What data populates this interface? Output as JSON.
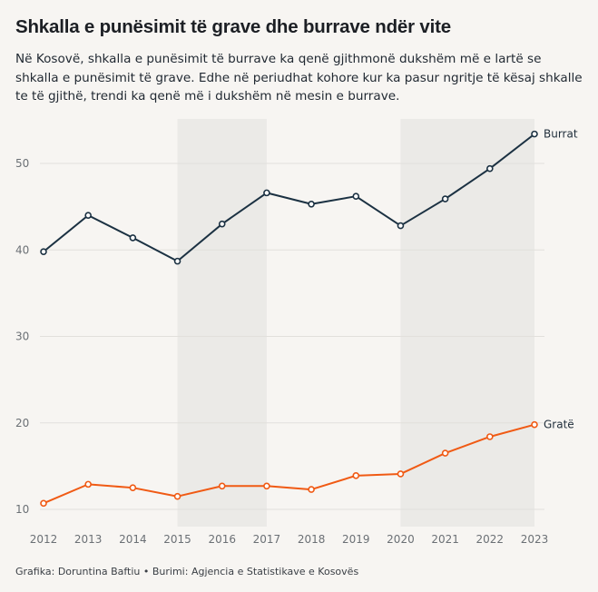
{
  "header": {
    "title": "Shkalla e punësimit të grave dhe burrave ndër vite",
    "subtitle": "Në Kosovë, shkalla e punësimit të burrave ka qenë gjithmonë dukshëm më e lartë se shkalla e punësimit të grave. Edhe në periudhat kohore kur ka pasur ngritje të kësaj shkalle te të gjithë, trendi ka qenë më i dukshëm në mesin e burrave."
  },
  "footer": {
    "credit": "Grafika: Doruntina Baftiu • Burimi: Agjencia e Statistikave e Kosovës"
  },
  "chart_data": {
    "type": "line",
    "x": [
      2012,
      2013,
      2014,
      2015,
      2016,
      2017,
      2018,
      2019,
      2020,
      2021,
      2022,
      2023
    ],
    "series": [
      {
        "name": "Burrat",
        "color": "#1b3142",
        "values": [
          39.8,
          44.0,
          41.4,
          38.7,
          43.0,
          46.6,
          45.3,
          46.2,
          42.8,
          45.9,
          49.4,
          53.4
        ]
      },
      {
        "name": "Gratë",
        "color": "#f05a14",
        "values": [
          10.7,
          12.9,
          12.5,
          11.5,
          12.7,
          12.7,
          12.3,
          13.9,
          14.1,
          16.5,
          18.4,
          19.8
        ]
      }
    ],
    "yticks": [
      10,
      20,
      30,
      40,
      50
    ],
    "ylim": [
      8.2,
      55.5
    ],
    "shaded_ranges": [
      [
        2015,
        2017
      ],
      [
        2020,
        2023
      ]
    ],
    "grid": true,
    "legend": "direct labels at line ends"
  }
}
